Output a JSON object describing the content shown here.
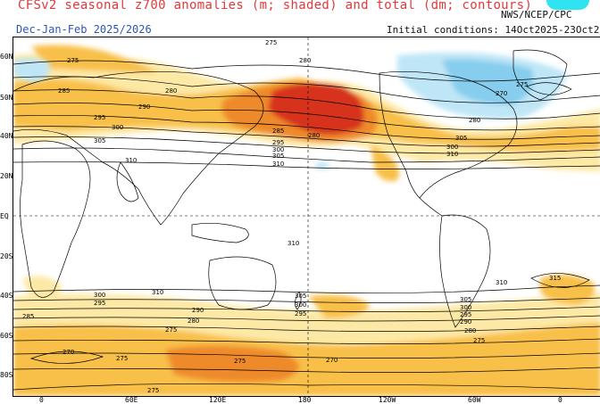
{
  "header": {
    "title": "CFSv2 seasonal z700 anomalies (m; shaded) and total (dm; contours)",
    "subtitle": "Dec-Jan-Feb 2025/2026",
    "credit": "NWS/NCEP/CPC",
    "initial_conditions": "Initial conditions: 14Oct2025-23Oct2025"
  },
  "axes": {
    "lat_labels": [
      "60N",
      "50N",
      "40N",
      "20N",
      "EQ",
      "20S",
      "40S",
      "60S",
      "80S"
    ],
    "lon_labels": [
      "0",
      "60E",
      "120E",
      "180",
      "120W",
      "60W",
      "0"
    ]
  },
  "contour_labels": [
    "275",
    "280",
    "285",
    "290",
    "295",
    "300",
    "305",
    "310",
    "315",
    "270"
  ],
  "colors": {
    "positive_light": "#fde9a6",
    "positive_mid": "#f8c04a",
    "positive_strong": "#ef8a2a",
    "positive_max": "#d6301c",
    "negative_light": "#bfe6f6",
    "negative_mid": "#86cdee",
    "coast": "#000000",
    "contour": "#000000"
  }
}
